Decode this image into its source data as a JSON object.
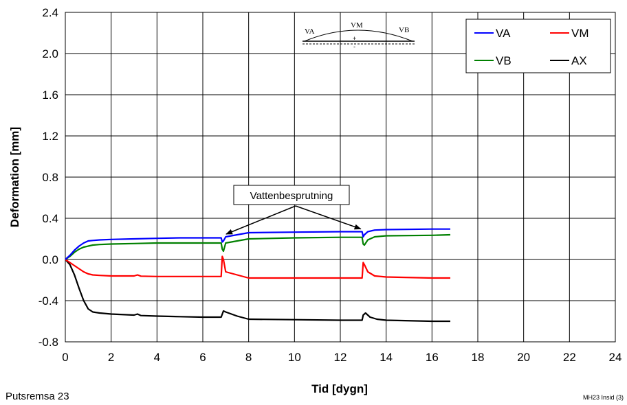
{
  "chart_data": {
    "type": "line",
    "xlabel": "Tid [dygn]",
    "ylabel": "Deformation [mm]",
    "xlim": [
      0,
      24
    ],
    "ylim": [
      -0.8,
      2.4
    ],
    "x_ticks": [
      "0",
      "2",
      "4",
      "6",
      "8",
      "10",
      "12",
      "14",
      "16",
      "18",
      "20",
      "22",
      "24"
    ],
    "y_ticks": [
      "2.4",
      "2.0",
      "1.6",
      "1.2",
      "0.8",
      "0.4",
      "0.0",
      "-0.4",
      "-0.8"
    ],
    "grid": true,
    "legend_position": "top-right",
    "series": [
      {
        "name": "VA",
        "color": "#0000ff",
        "x": [
          0,
          0.2,
          0.4,
          0.6,
          0.8,
          1,
          1.2,
          1.5,
          2,
          3,
          4,
          5,
          6,
          6.8,
          6.85,
          6.9,
          7,
          7.5,
          8,
          10,
          12,
          12.95,
          13,
          13.05,
          13.2,
          13.5,
          14,
          16,
          16.8
        ],
        "values": [
          0,
          0.04,
          0.09,
          0.13,
          0.16,
          0.18,
          0.185,
          0.19,
          0.195,
          0.2,
          0.205,
          0.21,
          0.21,
          0.21,
          0.17,
          0.18,
          0.22,
          0.24,
          0.26,
          0.265,
          0.27,
          0.27,
          0.22,
          0.24,
          0.27,
          0.285,
          0.29,
          0.295,
          0.295
        ]
      },
      {
        "name": "VM",
        "color": "#ff0000",
        "x": [
          0,
          0.2,
          0.4,
          0.6,
          0.8,
          1,
          1.2,
          1.5,
          2,
          3,
          3.15,
          3.3,
          4,
          5,
          6,
          6.8,
          6.85,
          6.9,
          7,
          7.5,
          8,
          10,
          12,
          12.95,
          13,
          13.05,
          13.2,
          13.5,
          14,
          16,
          16.8
        ],
        "values": [
          0,
          -0.03,
          -0.06,
          -0.09,
          -0.12,
          -0.14,
          -0.15,
          -0.155,
          -0.16,
          -0.16,
          -0.15,
          -0.162,
          -0.165,
          -0.165,
          -0.165,
          -0.165,
          0.03,
          0.0,
          -0.12,
          -0.15,
          -0.18,
          -0.18,
          -0.18,
          -0.18,
          -0.03,
          -0.05,
          -0.12,
          -0.16,
          -0.17,
          -0.18,
          -0.18
        ]
      },
      {
        "name": "VB",
        "color": "#008000",
        "x": [
          0,
          0.2,
          0.4,
          0.6,
          0.8,
          1,
          1.2,
          1.5,
          2,
          3,
          4,
          5,
          6,
          6.8,
          6.85,
          6.9,
          7,
          7.5,
          8,
          10,
          12,
          12.95,
          13,
          13.05,
          13.2,
          13.5,
          14,
          16,
          16.8
        ],
        "values": [
          0,
          0.03,
          0.07,
          0.1,
          0.12,
          0.13,
          0.14,
          0.145,
          0.15,
          0.155,
          0.16,
          0.16,
          0.16,
          0.16,
          0.1,
          0.08,
          0.16,
          0.18,
          0.2,
          0.21,
          0.215,
          0.215,
          0.15,
          0.14,
          0.19,
          0.22,
          0.23,
          0.235,
          0.24
        ]
      },
      {
        "name": "AX",
        "color": "#000000",
        "x": [
          0,
          0.2,
          0.4,
          0.6,
          0.8,
          1,
          1.2,
          1.5,
          2,
          3,
          3.15,
          3.3,
          4,
          5,
          6,
          6.8,
          6.9,
          7,
          7.5,
          8,
          10,
          12,
          12.95,
          13,
          13.1,
          13.3,
          13.6,
          14,
          16,
          16.8
        ],
        "values": [
          0,
          -0.05,
          -0.15,
          -0.28,
          -0.4,
          -0.48,
          -0.51,
          -0.52,
          -0.53,
          -0.54,
          -0.53,
          -0.545,
          -0.55,
          -0.555,
          -0.56,
          -0.56,
          -0.5,
          -0.51,
          -0.55,
          -0.58,
          -0.585,
          -0.59,
          -0.59,
          -0.54,
          -0.52,
          -0.56,
          -0.58,
          -0.59,
          -0.6,
          -0.6
        ]
      }
    ],
    "annotation": {
      "text": "Vattenbesprutning",
      "arrow_targets": [
        [
          6.9,
          0.22
        ],
        [
          12.95,
          0.27
        ]
      ]
    },
    "inset": {
      "labels": {
        "left": "VA",
        "mid": "VM",
        "right": "VB"
      },
      "plus": "+",
      "minus": "-"
    }
  },
  "footer": {
    "left": "Putsremsa 23",
    "right": "MH23 Insid (3)"
  }
}
